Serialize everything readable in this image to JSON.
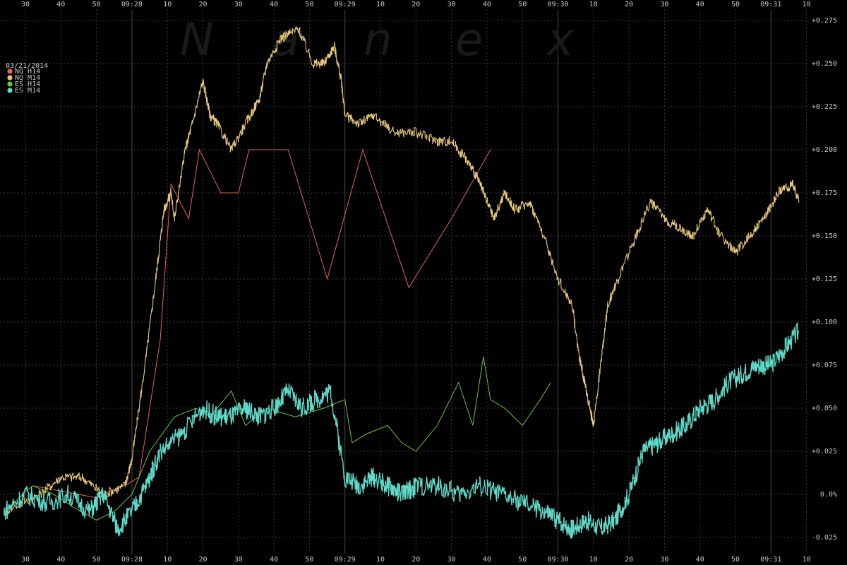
{
  "chart_data": {
    "type": "line",
    "title": "",
    "xlabel": "",
    "ylabel": "",
    "date": "03/21/2014",
    "watermark": [
      "N",
      "a",
      "n",
      "e",
      "x"
    ],
    "x_unit": "seconds after 09:27:20",
    "xlim": [
      0,
      270
    ],
    "ylim": [
      -0.03,
      0.28
    ],
    "grid": true,
    "legend_position": "top-left",
    "x_ticks": [
      {
        "t": 10,
        "label": "30"
      },
      {
        "t": 20,
        "label": "40"
      },
      {
        "t": 30,
        "label": "50"
      },
      {
        "t": 40,
        "label": "09:28"
      },
      {
        "t": 50,
        "label": "10"
      },
      {
        "t": 60,
        "label": "20"
      },
      {
        "t": 70,
        "label": "30"
      },
      {
        "t": 80,
        "label": "40"
      },
      {
        "t": 90,
        "label": "50"
      },
      {
        "t": 100,
        "label": "09:29"
      },
      {
        "t": 110,
        "label": "10"
      },
      {
        "t": 120,
        "label": "20"
      },
      {
        "t": 130,
        "label": "30"
      },
      {
        "t": 140,
        "label": "40"
      },
      {
        "t": 150,
        "label": "50"
      },
      {
        "t": 160,
        "label": "09:30"
      },
      {
        "t": 170,
        "label": "10"
      },
      {
        "t": 180,
        "label": "20"
      },
      {
        "t": 190,
        "label": "30"
      },
      {
        "t": 200,
        "label": "40"
      },
      {
        "t": 210,
        "label": "50"
      },
      {
        "t": 220,
        "label": "09:31"
      },
      {
        "t": 230,
        "label": "10"
      }
    ],
    "y_ticks": [
      {
        "v": 0.275,
        "label": "+0.275"
      },
      {
        "v": 0.25,
        "label": "+0.250"
      },
      {
        "v": 0.225,
        "label": "+0.225"
      },
      {
        "v": 0.2,
        "label": "+0.200"
      },
      {
        "v": 0.175,
        "label": "+0.175"
      },
      {
        "v": 0.15,
        "label": "+0.150"
      },
      {
        "v": 0.125,
        "label": "+0.125"
      },
      {
        "v": 0.1,
        "label": "+0.100"
      },
      {
        "v": 0.075,
        "label": "+0.075"
      },
      {
        "v": 0.05,
        "label": "+0.050"
      },
      {
        "v": 0.025,
        "label": "+0.025"
      },
      {
        "v": 0.0,
        "label": "0.0%"
      },
      {
        "v": -0.025,
        "label": "-0.025"
      }
    ],
    "series": [
      {
        "name": "NQ H14",
        "color": "#e8635a",
        "style": "thin",
        "x": [
          12,
          25,
          30,
          35,
          38,
          42,
          48,
          51,
          56,
          59,
          65,
          70,
          73,
          78,
          84,
          95,
          105,
          118,
          130,
          141
        ],
        "y": [
          0.005,
          0.0,
          -0.002,
          0.003,
          0.005,
          0.01,
          0.09,
          0.18,
          0.16,
          0.2,
          0.175,
          0.175,
          0.2,
          0.2,
          0.2,
          0.125,
          0.2,
          0.12,
          0.16,
          0.2
        ]
      },
      {
        "name": "NQ M14",
        "color": "#e8c87a",
        "style": "noisy",
        "x": [
          4,
          14,
          20,
          26,
          32,
          38,
          40,
          44,
          47,
          49,
          51,
          52,
          55,
          57,
          60,
          62,
          64,
          68,
          72,
          76,
          78,
          82,
          87,
          91,
          94,
          97,
          99,
          100,
          104,
          108,
          114,
          120,
          126,
          130,
          134,
          137,
          139,
          142,
          145,
          148,
          152,
          156,
          160,
          164,
          166,
          168,
          170,
          172,
          174,
          178,
          182,
          186,
          190,
          194,
          198,
          202,
          206,
          210,
          214,
          218,
          222,
          226,
          228
        ],
        "y": [
          -0.01,
          0.0,
          0.01,
          0.01,
          0.0,
          0.005,
          0.02,
          0.08,
          0.13,
          0.165,
          0.175,
          0.16,
          0.2,
          0.215,
          0.24,
          0.22,
          0.215,
          0.2,
          0.215,
          0.23,
          0.25,
          0.265,
          0.27,
          0.25,
          0.25,
          0.26,
          0.24,
          0.22,
          0.215,
          0.22,
          0.21,
          0.21,
          0.205,
          0.205,
          0.195,
          0.185,
          0.175,
          0.16,
          0.175,
          0.165,
          0.17,
          0.15,
          0.125,
          0.11,
          0.08,
          0.06,
          0.04,
          0.075,
          0.11,
          0.13,
          0.15,
          0.17,
          0.16,
          0.155,
          0.15,
          0.165,
          0.15,
          0.14,
          0.15,
          0.16,
          0.175,
          0.18,
          0.17
        ]
      },
      {
        "name": "ES H14",
        "color": "#6ec33c",
        "style": "thin",
        "x": [
          4,
          12,
          18,
          24,
          30,
          35,
          40,
          45,
          52,
          58,
          62,
          68,
          72,
          78,
          86,
          94,
          100,
          102,
          106,
          112,
          116,
          120,
          126,
          132,
          136,
          139,
          141,
          145,
          150,
          155,
          158
        ],
        "y": [
          -0.01,
          0.005,
          0.0,
          -0.008,
          -0.015,
          -0.01,
          0.0,
          0.025,
          0.045,
          0.05,
          0.045,
          0.06,
          0.04,
          0.05,
          0.045,
          0.05,
          0.055,
          0.03,
          0.035,
          0.04,
          0.03,
          0.025,
          0.04,
          0.065,
          0.04,
          0.08,
          0.055,
          0.05,
          0.04,
          0.055,
          0.065
        ]
      },
      {
        "name": "ES M14",
        "color": "#5fd9c8",
        "style": "block",
        "x": [
          4,
          10,
          16,
          22,
          28,
          32,
          36,
          40,
          44,
          48,
          54,
          60,
          64,
          68,
          72,
          76,
          80,
          84,
          88,
          92,
          96,
          100,
          104,
          108,
          112,
          116,
          120,
          126,
          132,
          138,
          144,
          150,
          156,
          160,
          164,
          168,
          172,
          176,
          180,
          184,
          188,
          192,
          196,
          200,
          204,
          208,
          212,
          216,
          220,
          224,
          228
        ],
        "y": [
          -0.01,
          0.0,
          -0.005,
          0.0,
          -0.01,
          0.0,
          -0.02,
          -0.01,
          0.005,
          0.025,
          0.035,
          0.05,
          0.045,
          0.045,
          0.05,
          0.045,
          0.05,
          0.06,
          0.05,
          0.055,
          0.06,
          0.01,
          0.005,
          0.01,
          0.005,
          0.0,
          0.005,
          0.005,
          0.0,
          0.005,
          0.0,
          -0.005,
          -0.01,
          -0.015,
          -0.02,
          -0.015,
          -0.02,
          -0.015,
          0.0,
          0.025,
          0.03,
          0.035,
          0.04,
          0.05,
          0.055,
          0.065,
          0.07,
          0.075,
          0.075,
          0.085,
          0.095
        ]
      }
    ]
  }
}
